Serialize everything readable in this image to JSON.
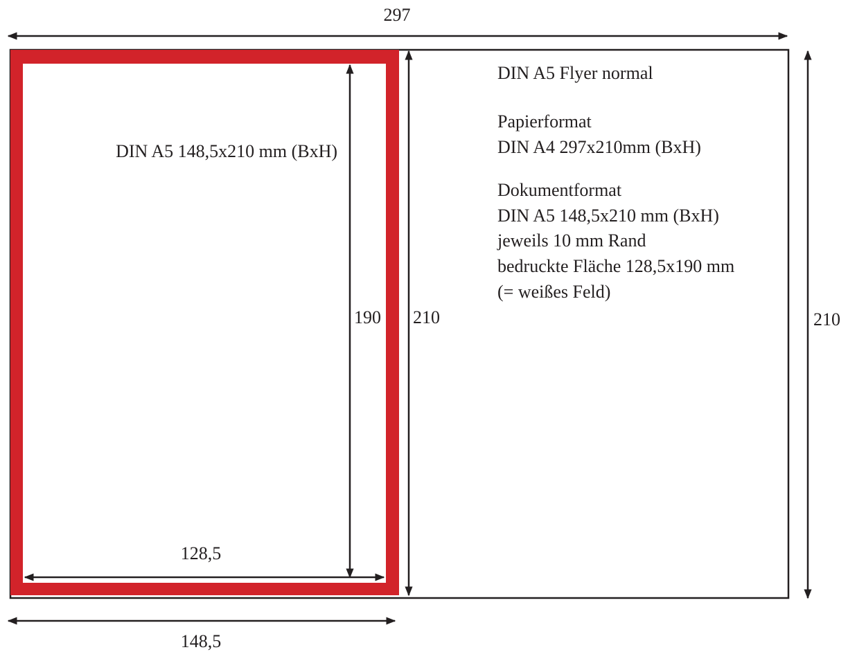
{
  "dimensions": {
    "total_width": "297",
    "total_height_right": "210",
    "fold_height": "210",
    "inner_height": "190",
    "inner_width": "128,5",
    "panel_width": "148,5"
  },
  "panel_label": "DIN A5 148,5x210 mm (BxH)",
  "info": {
    "title": "DIN A5 Flyer normal",
    "paper_heading": "Papierformat",
    "paper_value": "DIN A4 297x210mm (BxH)",
    "document_heading": "Dokumentformat",
    "document_value": "DIN A5 148,5x210 mm (BxH)",
    "margin_note": "jeweils 10 mm Rand",
    "printed_area": "bedruckte Fläche 128,5x190 mm",
    "printed_area_note": "(= weißes Feld)"
  },
  "colors": {
    "bleed_red": "#d2232a",
    "line": "#231f20"
  }
}
